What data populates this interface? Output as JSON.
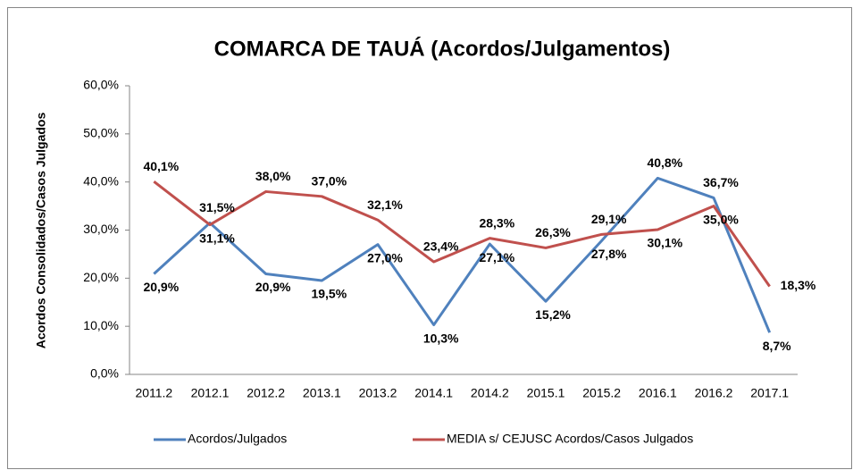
{
  "chart_data": {
    "type": "line",
    "title": "COMARCA DE TAUÁ (Acordos/Julgamentos)",
    "y_label": "Acordos Consolidados/Casos Julgados",
    "categories": [
      "2011.2",
      "2012.1",
      "2012.2",
      "2013.1",
      "2013.2",
      "2014.1",
      "2014.2",
      "2015.1",
      "2015.2",
      "2016.1",
      "2016.2",
      "2017.1"
    ],
    "series": [
      {
        "name": "Acordos/Julgados",
        "color": "#4f81bd",
        "label_color": "#243f60",
        "values": [
          20.9,
          31.5,
          20.9,
          19.5,
          27.0,
          10.3,
          27.1,
          15.2,
          27.8,
          40.8,
          36.7,
          8.7
        ],
        "value_labels": [
          "20,9%",
          "31,5%",
          "20,9%",
          "19,5%",
          "27,0%",
          "10,3%",
          "27,1%",
          "15,2%",
          "27,8%",
          "40,8%",
          "36,7%",
          "8,7%"
        ]
      },
      {
        "name": "MEDIA s/ CEJUSC Acordos/Casos Julgados",
        "color": "#c0504d",
        "label_color": "#772c2a",
        "values": [
          40.1,
          31.1,
          38.0,
          37.0,
          32.1,
          23.4,
          28.3,
          26.3,
          29.1,
          30.1,
          35.0,
          18.3
        ],
        "value_labels": [
          "40,1%",
          "31,1%",
          "38,0%",
          "37,0%",
          "32,1%",
          "23,4%",
          "28,3%",
          "26,3%",
          "29,1%",
          "30,1%",
          "35,0%",
          "18,3%"
        ]
      }
    ],
    "ylim": [
      0,
      60
    ],
    "yticks": [
      {
        "value": 0,
        "label": "0,0%"
      },
      {
        "value": 10,
        "label": "10,0%"
      },
      {
        "value": 20,
        "label": "20,0%"
      },
      {
        "value": 30,
        "label": "30,0%"
      },
      {
        "value": 40,
        "label": "40,0%"
      },
      {
        "value": 50,
        "label": "50,0%"
      },
      {
        "value": 60,
        "label": "60,0%"
      }
    ],
    "legend": "bottom",
    "grid": false
  }
}
